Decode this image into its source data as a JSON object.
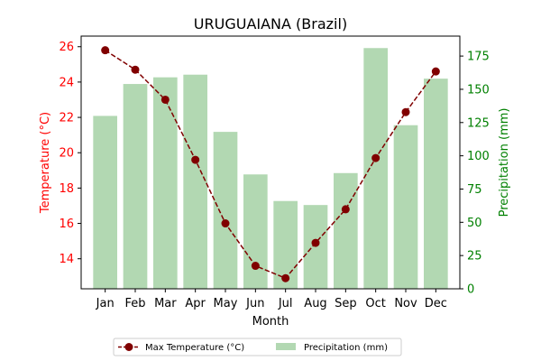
{
  "chart_data": {
    "type": "bar+line",
    "title": "URUGUAIANA (Brazil)",
    "xlabel": "Month",
    "categories": [
      "Jan",
      "Feb",
      "Mar",
      "Apr",
      "May",
      "Jun",
      "Jul",
      "Aug",
      "Sep",
      "Oct",
      "Nov",
      "Dec"
    ],
    "left_axis": {
      "label": "Temperature (°C)",
      "color": "#ff0000",
      "ylim": [
        12.3,
        26.6
      ],
      "ticks": [
        14,
        16,
        18,
        20,
        22,
        24,
        26
      ]
    },
    "right_axis": {
      "label": "Precipitation (mm)",
      "color": "#008000",
      "ylim": [
        0,
        190
      ],
      "ticks": [
        0,
        25,
        50,
        75,
        100,
        125,
        150,
        175
      ]
    },
    "series": [
      {
        "name": "Max Temperature (°C)",
        "type": "line",
        "axis": "left",
        "color": "#800000",
        "linestyle": "dashed",
        "marker": "circle",
        "values": [
          25.8,
          24.7,
          23.0,
          19.6,
          16.0,
          13.6,
          12.9,
          14.9,
          16.8,
          19.7,
          22.3,
          24.6
        ]
      },
      {
        "name": "Precipitation (mm)",
        "type": "bar",
        "axis": "right",
        "color": "#b2d8b2",
        "values": [
          130,
          154,
          159,
          161,
          118,
          86,
          66,
          63,
          87,
          181,
          123,
          158
        ]
      }
    ],
    "legend_position": "bottom-center",
    "grid": false
  }
}
